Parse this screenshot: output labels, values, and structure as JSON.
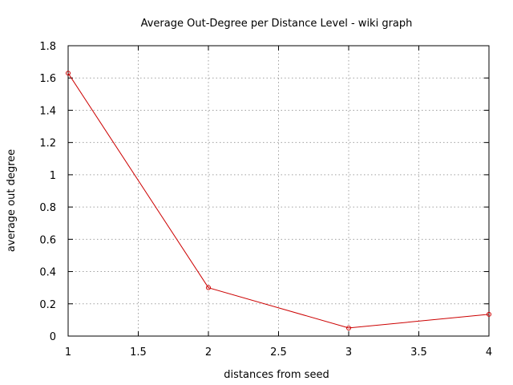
{
  "chart_data": {
    "type": "line",
    "title": "Average Out-Degree per Distance Level - wiki graph",
    "xlabel": "distances from seed",
    "ylabel": "average out degree",
    "xlim": [
      1,
      4
    ],
    "ylim": [
      0,
      1.8
    ],
    "xticks": [
      "1",
      "1.5",
      "2",
      "2.5",
      "3",
      "3.5",
      "4"
    ],
    "yticks": [
      "0",
      "0.2",
      "0.4",
      "0.6",
      "0.8",
      "1",
      "1.2",
      "1.4",
      "1.6",
      "1.8"
    ],
    "grid": true,
    "legend": "none",
    "series": [
      {
        "x": [
          1,
          2,
          3,
          4
        ],
        "values": [
          1.63,
          0.3,
          0.05,
          0.135
        ],
        "color": "#cc0000",
        "marker": "circle"
      }
    ]
  }
}
